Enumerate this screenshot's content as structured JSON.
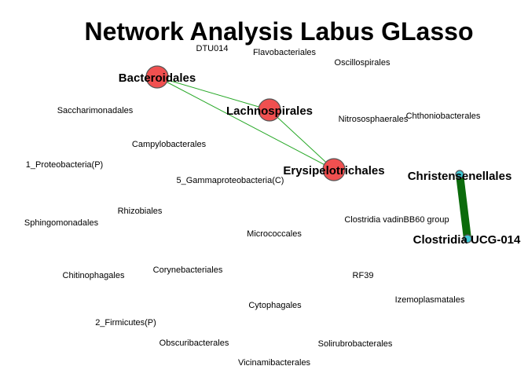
{
  "title": "Network Analysis Labus GLasso",
  "colors": {
    "hub_node": "#f05050",
    "teal_node": "#3ec9d6",
    "thin_edge": "#27a827",
    "thick_edge": "#0b6b0b"
  },
  "nodes": [
    {
      "id": "bacteroidales",
      "label": "Bacteroidales",
      "emphasis": "hub"
    },
    {
      "id": "lachnospirales",
      "label": "Lachnospirales",
      "emphasis": "hub"
    },
    {
      "id": "erysipelotrichales",
      "label": "Erysipelotrichales",
      "emphasis": "hub"
    },
    {
      "id": "christensenellales",
      "label": "Christensenellales",
      "emphasis": "teal"
    },
    {
      "id": "clostridia-ucg-014",
      "label": "Clostridia UCG-014",
      "emphasis": "teal"
    },
    {
      "id": "dtu014",
      "label": "DTU014",
      "emphasis": "none"
    },
    {
      "id": "flavobacteriales",
      "label": "Flavobacteriales",
      "emphasis": "none"
    },
    {
      "id": "oscillospirales",
      "label": "Oscillospirales",
      "emphasis": "none"
    },
    {
      "id": "saccharimonadales",
      "label": "Saccharimonadales",
      "emphasis": "none"
    },
    {
      "id": "nitrososphaerales",
      "label": "Nitrososphaerales",
      "emphasis": "none"
    },
    {
      "id": "chthoniobacterales",
      "label": "Chthoniobacterales",
      "emphasis": "none"
    },
    {
      "id": "campylobacterales",
      "label": "Campylobacterales",
      "emphasis": "none"
    },
    {
      "id": "proteobacteria-p",
      "label": "1_Proteobacteria(P)",
      "emphasis": "none"
    },
    {
      "id": "gammaproteobacteria-c",
      "label": "5_Gammaproteobacteria(C)",
      "emphasis": "none"
    },
    {
      "id": "rhizobiales",
      "label": "Rhizobiales",
      "emphasis": "none"
    },
    {
      "id": "sphingomonadales",
      "label": "Sphingomonadales",
      "emphasis": "none"
    },
    {
      "id": "clostridia-vadinbb60",
      "label": "Clostridia vadinBB60 group",
      "emphasis": "none"
    },
    {
      "id": "micrococcales",
      "label": "Micrococcales",
      "emphasis": "none"
    },
    {
      "id": "chitinophagales",
      "label": "Chitinophagales",
      "emphasis": "none"
    },
    {
      "id": "corynebacteriales",
      "label": "Corynebacteriales",
      "emphasis": "none"
    },
    {
      "id": "rf39",
      "label": "RF39",
      "emphasis": "none"
    },
    {
      "id": "izemoplasmatales",
      "label": "Izemoplasmatales",
      "emphasis": "none"
    },
    {
      "id": "cytophagales",
      "label": "Cytophagales",
      "emphasis": "none"
    },
    {
      "id": "firmicutes-p",
      "label": "2_Firmicutes(P)",
      "emphasis": "none"
    },
    {
      "id": "obscuribacterales",
      "label": "Obscuribacterales",
      "emphasis": "none"
    },
    {
      "id": "solirubrobacterales",
      "label": "Solirubrobacterales",
      "emphasis": "none"
    },
    {
      "id": "vicinamibacterales",
      "label": "Vicinamibacterales",
      "emphasis": "none"
    }
  ],
  "edges": [
    {
      "from": "bacteroidales",
      "to": "lachnospirales",
      "strength": "weak"
    },
    {
      "from": "bacteroidales",
      "to": "erysipelotrichales",
      "strength": "weak"
    },
    {
      "from": "lachnospirales",
      "to": "erysipelotrichales",
      "strength": "weak"
    },
    {
      "from": "christensenellales",
      "to": "clostridia-ucg-014",
      "strength": "strong"
    }
  ]
}
